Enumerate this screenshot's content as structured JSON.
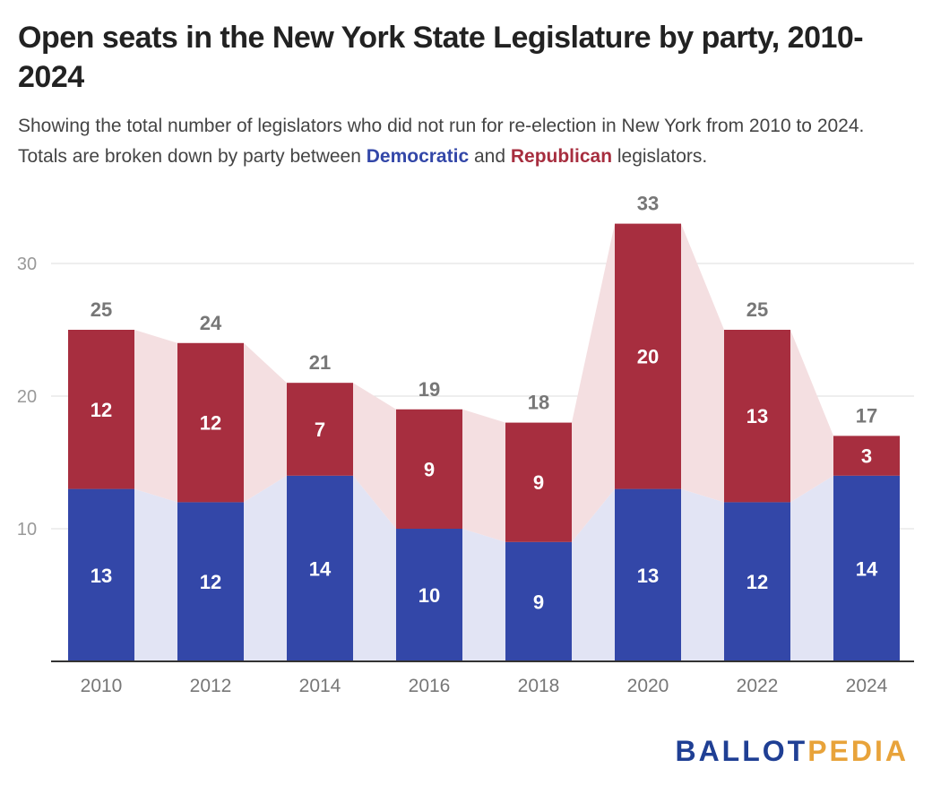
{
  "title": "Open seats in the New York State Legislature by party, 2010-2024",
  "subtitle": {
    "pre": "Showing the total number of legislators who did not run for re-election in New York from 2010 to 2024. Totals are broken down by party between ",
    "dem": "Democratic",
    "mid": " and ",
    "rep": "Republican",
    "post": " legislators."
  },
  "brand": {
    "part1": "BALLOT",
    "part2": "PEDIA"
  },
  "colors": {
    "democratic": "#3347a8",
    "republican": "#a72e3f",
    "dem_band": "#e2e4f4",
    "rep_band": "#f4dfe1",
    "grid": "#dddddd",
    "axis": "#333333",
    "tick_text": "#999999",
    "total_text": "#777777"
  },
  "chart_data": {
    "type": "bar",
    "stacked": true,
    "categories": [
      "2010",
      "2012",
      "2014",
      "2016",
      "2018",
      "2020",
      "2022",
      "2024"
    ],
    "series": [
      {
        "name": "Democratic",
        "values": [
          13,
          12,
          14,
          10,
          9,
          13,
          12,
          14
        ]
      },
      {
        "name": "Republican",
        "values": [
          12,
          12,
          7,
          9,
          9,
          20,
          13,
          3
        ]
      }
    ],
    "totals": [
      25,
      24,
      21,
      19,
      18,
      33,
      25,
      17
    ],
    "y_ticks": [
      10,
      20,
      30
    ],
    "ylim": [
      0,
      34
    ],
    "grid": true,
    "xlabel": "",
    "ylabel": ""
  }
}
